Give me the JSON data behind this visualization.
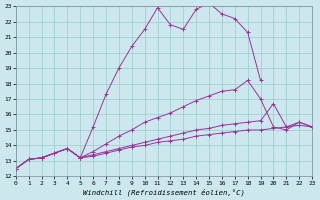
{
  "xlabel": "Windchill (Refroidissement éolien,°C)",
  "bg_color": "#cce8ee",
  "line_color": "#993399",
  "grid_color": "#99cccc",
  "xlim": [
    0,
    23
  ],
  "ylim": [
    12,
    23
  ],
  "xticks": [
    0,
    1,
    2,
    3,
    4,
    5,
    6,
    7,
    8,
    9,
    10,
    11,
    12,
    13,
    14,
    15,
    16,
    17,
    18,
    19,
    20,
    21,
    22,
    23
  ],
  "yticks": [
    12,
    13,
    14,
    15,
    16,
    17,
    18,
    19,
    20,
    21,
    22,
    23
  ],
  "series": [
    {
      "x": [
        0,
        1,
        2,
        3,
        4,
        5,
        6,
        7,
        8,
        9,
        10,
        11,
        12,
        13,
        14,
        15,
        16,
        17,
        18,
        19
      ],
      "y": [
        12.5,
        13.1,
        13.2,
        13.5,
        13.8,
        13.2,
        15.2,
        17.3,
        19.0,
        20.4,
        21.5,
        22.9,
        21.8,
        21.5,
        22.8,
        23.2,
        22.5,
        22.2,
        21.3,
        18.2
      ]
    },
    {
      "x": [
        0,
        1,
        2,
        3,
        4,
        5,
        6,
        7,
        8,
        9,
        10,
        11,
        12,
        13,
        14,
        15,
        16,
        17,
        18,
        19,
        20,
        21,
        22,
        23
      ],
      "y": [
        12.5,
        13.1,
        13.2,
        13.5,
        13.8,
        13.2,
        13.6,
        14.1,
        14.6,
        15.0,
        15.5,
        15.8,
        16.1,
        16.5,
        16.9,
        17.2,
        17.5,
        17.6,
        18.2,
        17.0,
        15.2,
        15.0,
        15.5,
        15.2
      ]
    },
    {
      "x": [
        0,
        1,
        2,
        3,
        4,
        5,
        6,
        7,
        8,
        9,
        10,
        11,
        12,
        13,
        14,
        15,
        16,
        17,
        18,
        19,
        20,
        21,
        22,
        23
      ],
      "y": [
        12.5,
        13.1,
        13.2,
        13.5,
        13.8,
        13.2,
        13.4,
        13.6,
        13.8,
        14.0,
        14.2,
        14.4,
        14.6,
        14.8,
        15.0,
        15.1,
        15.3,
        15.4,
        15.5,
        15.6,
        16.7,
        15.2,
        15.5,
        15.2
      ]
    },
    {
      "x": [
        0,
        1,
        2,
        3,
        4,
        5,
        6,
        7,
        8,
        9,
        10,
        11,
        12,
        13,
        14,
        15,
        16,
        17,
        18,
        19,
        20,
        21,
        22,
        23
      ],
      "y": [
        12.5,
        13.1,
        13.2,
        13.5,
        13.8,
        13.2,
        13.3,
        13.5,
        13.7,
        13.9,
        14.0,
        14.2,
        14.3,
        14.4,
        14.6,
        14.7,
        14.8,
        14.9,
        15.0,
        15.0,
        15.1,
        15.2,
        15.3,
        15.2
      ]
    }
  ]
}
